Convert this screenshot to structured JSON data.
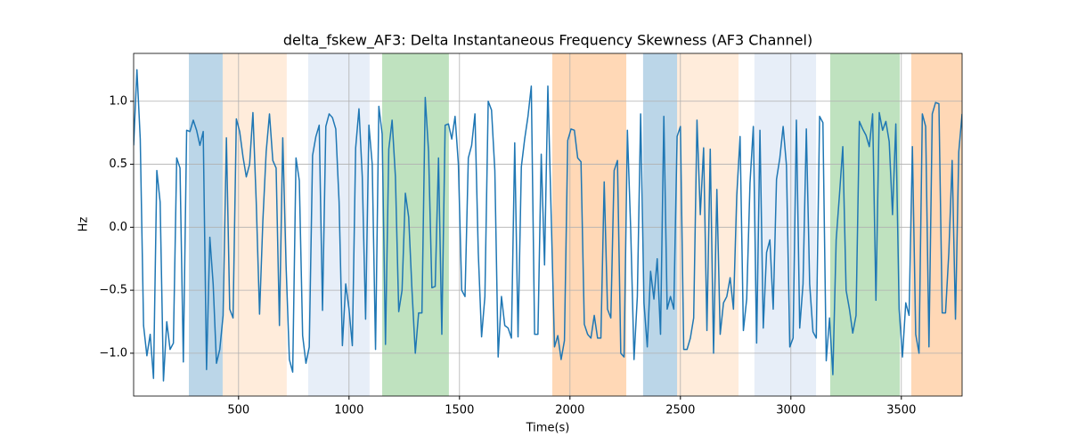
{
  "chart_data": {
    "type": "line",
    "title": "delta_fskew_AF3: Delta Instantaneous Frequency Skewness (AF3 Channel)",
    "xlabel": "Time(s)",
    "ylabel": "Hz",
    "color": "#1f77b4",
    "grid": true,
    "xlim": [
      25,
      3775
    ],
    "ylim": [
      -1.34,
      1.38
    ],
    "xticks": [
      500,
      1000,
      1500,
      2000,
      2500,
      3000,
      3500
    ],
    "yticks": [
      {
        "value": -1,
        "label": "−1.0"
      },
      {
        "value": -0.5,
        "label": "−0.5"
      },
      {
        "value": 0,
        "label": "0.0"
      },
      0.5,
      {
        "value": 1,
        "label": "1.0"
      }
    ],
    "spans": [
      {
        "x0": 275,
        "x1": 428,
        "color": "#1f77b4",
        "alpha": 0.3
      },
      {
        "x0": 428,
        "x1": 718,
        "color": "#ff7f0e",
        "alpha": 0.15
      },
      {
        "x0": 815,
        "x1": 1093,
        "color": "#aec7e8",
        "alpha": 0.3
      },
      {
        "x0": 1150,
        "x1": 1452,
        "color": "#2ca02c",
        "alpha": 0.3
      },
      {
        "x0": 1920,
        "x1": 2255,
        "color": "#ff7f0e",
        "alpha": 0.3
      },
      {
        "x0": 2331,
        "x1": 2485,
        "color": "#1f77b4",
        "alpha": 0.3
      },
      {
        "x0": 2485,
        "x1": 2763,
        "color": "#ff7f0e",
        "alpha": 0.15
      },
      {
        "x0": 2835,
        "x1": 3114,
        "color": "#aec7e8",
        "alpha": 0.3
      },
      {
        "x0": 3178,
        "x1": 3493,
        "color": "#2ca02c",
        "alpha": 0.3
      },
      {
        "x0": 3545,
        "x1": 3775,
        "color": "#ff7f0e",
        "alpha": 0.3
      }
    ],
    "x": [
      25,
      40,
      55,
      70,
      85,
      100,
      115,
      130,
      145,
      160,
      175,
      190,
      205,
      220,
      235,
      250,
      265,
      280,
      295,
      310,
      325,
      340,
      355,
      370,
      385,
      400,
      415,
      430,
      445,
      460,
      475,
      490,
      505,
      520,
      535,
      550,
      565,
      580,
      595,
      610,
      625,
      640,
      655,
      670,
      685,
      700,
      715,
      730,
      745,
      760,
      775,
      790,
      805,
      820,
      835,
      850,
      865,
      880,
      895,
      910,
      925,
      940,
      955,
      970,
      985,
      1000,
      1015,
      1030,
      1045,
      1060,
      1075,
      1090,
      1105,
      1120,
      1135,
      1150,
      1165,
      1180,
      1195,
      1210,
      1225,
      1240,
      1255,
      1270,
      1285,
      1300,
      1315,
      1330,
      1345,
      1360,
      1375,
      1390,
      1405,
      1420,
      1435,
      1450,
      1465,
      1480,
      1495,
      1510,
      1525,
      1540,
      1555,
      1570,
      1585,
      1600,
      1615,
      1630,
      1645,
      1660,
      1675,
      1690,
      1705,
      1720,
      1735,
      1750,
      1765,
      1780,
      1795,
      1810,
      1825,
      1840,
      1855,
      1870,
      1885,
      1900,
      1915,
      1930,
      1945,
      1960,
      1975,
      1990,
      2005,
      2020,
      2035,
      2050,
      2065,
      2080,
      2095,
      2110,
      2125,
      2140,
      2155,
      2170,
      2185,
      2200,
      2215,
      2230,
      2245,
      2260,
      2275,
      2290,
      2305,
      2320,
      2335,
      2350,
      2365,
      2380,
      2395,
      2410,
      2425,
      2440,
      2455,
      2470,
      2485,
      2500,
      2515,
      2530,
      2545,
      2560,
      2575,
      2590,
      2605,
      2620,
      2635,
      2650,
      2665,
      2680,
      2695,
      2710,
      2725,
      2740,
      2755,
      2770,
      2785,
      2800,
      2815,
      2830,
      2845,
      2860,
      2875,
      2890,
      2905,
      2920,
      2935,
      2950,
      2965,
      2980,
      2995,
      3010,
      3025,
      3040,
      3055,
      3070,
      3085,
      3100,
      3115,
      3130,
      3145,
      3160,
      3175,
      3190,
      3205,
      3220,
      3235,
      3250,
      3265,
      3280,
      3295,
      3310,
      3325,
      3340,
      3355,
      3370,
      3385,
      3400,
      3415,
      3430,
      3445,
      3460,
      3475,
      3490,
      3505,
      3520,
      3535,
      3550,
      3565,
      3580,
      3595,
      3610,
      3625,
      3640,
      3655,
      3670,
      3685,
      3700,
      3715,
      3730,
      3745,
      3760,
      3775
    ],
    "values": [
      0.65,
      1.25,
      0.7,
      -0.78,
      -1.02,
      -0.85,
      -1.2,
      0.45,
      0.2,
      -1.22,
      -0.75,
      -0.97,
      -0.92,
      0.55,
      0.47,
      -1.07,
      0.77,
      0.76,
      0.85,
      0.77,
      0.65,
      0.76,
      -1.13,
      -0.08,
      -0.45,
      -1.08,
      -0.97,
      -0.7,
      0.71,
      -0.65,
      -0.72,
      0.86,
      0.76,
      0.56,
      0.4,
      0.5,
      0.91,
      0.2,
      -0.69,
      0.05,
      0.6,
      0.9,
      0.53,
      0.47,
      -0.78,
      0.71,
      -0.3,
      -1.05,
      -1.15,
      0.55,
      0.37,
      -0.86,
      -1.08,
      -0.95,
      0.57,
      0.72,
      0.81,
      -0.66,
      0.8,
      0.9,
      0.87,
      0.78,
      0.2,
      -0.94,
      -0.45,
      -0.65,
      -0.94,
      0.63,
      0.94,
      0.4,
      -0.73,
      0.81,
      0.5,
      -0.97,
      0.96,
      0.74,
      -0.93,
      0.62,
      0.85,
      0.4,
      -0.67,
      -0.5,
      0.27,
      0.08,
      -0.5,
      -1.0,
      -0.68,
      -0.68,
      1.03,
      0.6,
      -0.48,
      -0.47,
      0.55,
      -0.85,
      0.81,
      0.82,
      0.7,
      0.88,
      0.5,
      -0.5,
      -0.55,
      0.55,
      0.65,
      0.9,
      -0.2,
      -0.87,
      -0.55,
      1.0,
      0.93,
      0.45,
      -1.03,
      -0.55,
      -0.78,
      -0.8,
      -0.88,
      0.67,
      -0.87,
      0.48,
      0.7,
      0.88,
      1.12,
      -0.85,
      -0.85,
      0.58,
      -0.3,
      1.12,
      0.1,
      -0.95,
      -0.86,
      -1.05,
      -0.9,
      0.69,
      0.78,
      0.77,
      0.55,
      0.52,
      -0.77,
      -0.85,
      -0.88,
      -0.7,
      -0.88,
      -0.88,
      0.36,
      -0.65,
      -0.72,
      0.45,
      0.53,
      -1.0,
      -1.03,
      0.77,
      -0.02,
      -1.05,
      -0.55,
      0.9,
      -0.6,
      -0.95,
      -0.35,
      -0.57,
      -0.25,
      -0.85,
      0.88,
      -0.65,
      -0.55,
      -0.65,
      0.72,
      0.8,
      -0.97,
      -0.97,
      -0.88,
      -0.72,
      0.85,
      0.1,
      0.63,
      -0.82,
      0.62,
      -1.0,
      0.3,
      -0.85,
      -0.6,
      -0.55,
      -0.4,
      -0.65,
      0.25,
      0.72,
      -0.82,
      -0.57,
      0.35,
      0.8,
      -0.92,
      0.77,
      -0.8,
      -0.2,
      -0.1,
      -0.65,
      0.38,
      0.55,
      0.8,
      0.49,
      -0.95,
      -0.88,
      0.85,
      -0.8,
      -0.45,
      0.78,
      -0.45,
      -0.83,
      -0.88,
      0.88,
      0.83,
      -1.06,
      -0.72,
      -1.17,
      -0.1,
      0.26,
      0.64,
      -0.5,
      -0.65,
      -0.84,
      -0.7,
      0.84,
      0.78,
      0.73,
      0.64,
      0.9,
      -0.58,
      0.91,
      0.77,
      0.84,
      0.68,
      0.1,
      0.82,
      -0.65,
      -1.03,
      -0.6,
      -0.7,
      0.64,
      -0.85,
      -1.0,
      0.9,
      0.8,
      -0.95,
      0.9,
      0.99,
      0.98,
      -0.68,
      -0.68,
      -0.2,
      0.53,
      -0.73,
      0.6,
      0.9
    ]
  }
}
